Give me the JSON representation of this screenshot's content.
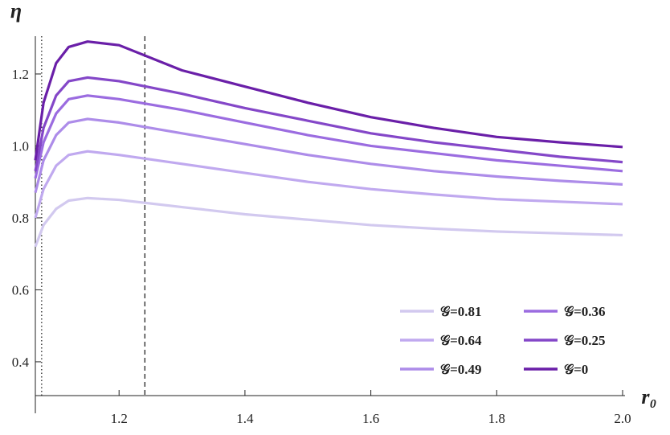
{
  "chart_data": {
    "type": "line",
    "x_label": "r₀",
    "y_label": "η",
    "x": [
      1.067,
      1.08,
      1.1,
      1.12,
      1.15,
      1.2,
      1.3,
      1.4,
      1.5,
      1.6,
      1.7,
      1.8,
      1.9,
      2.0
    ],
    "series": [
      {
        "name": "𝒢=0.81",
        "color": "#d2c9ef",
        "values": [
          0.72,
          0.78,
          0.825,
          0.848,
          0.855,
          0.85,
          0.83,
          0.81,
          0.795,
          0.78,
          0.77,
          0.762,
          0.757,
          0.752
        ]
      },
      {
        "name": "𝒢=0.64",
        "color": "#c0a9ef",
        "values": [
          0.8,
          0.88,
          0.945,
          0.975,
          0.985,
          0.975,
          0.95,
          0.925,
          0.9,
          0.88,
          0.865,
          0.852,
          0.845,
          0.838
        ]
      },
      {
        "name": "𝒢=0.49",
        "color": "#ad8ce9",
        "values": [
          0.87,
          0.96,
          1.03,
          1.065,
          1.075,
          1.065,
          1.035,
          1.005,
          0.975,
          0.95,
          0.93,
          0.915,
          0.903,
          0.893
        ]
      },
      {
        "name": "𝒢=0.36",
        "color": "#9b6ce0",
        "values": [
          0.91,
          1.01,
          1.09,
          1.13,
          1.14,
          1.13,
          1.1,
          1.065,
          1.03,
          1.0,
          0.98,
          0.96,
          0.945,
          0.93
        ]
      },
      {
        "name": "𝒢=0.25",
        "color": "#8447c8",
        "values": [
          0.93,
          1.05,
          1.14,
          1.18,
          1.19,
          1.18,
          1.145,
          1.105,
          1.07,
          1.035,
          1.01,
          0.99,
          0.97,
          0.955
        ]
      },
      {
        "name": "𝒢=0",
        "color": "#6a1fa8",
        "values": [
          0.96,
          1.12,
          1.23,
          1.275,
          1.29,
          1.28,
          1.21,
          1.165,
          1.12,
          1.08,
          1.05,
          1.025,
          1.01,
          0.997
        ]
      }
    ],
    "xlim": [
      1.067,
      2.0
    ],
    "ylim": [
      0.306,
      1.305
    ],
    "xticks": [
      1.2,
      1.4,
      1.6,
      1.8,
      {
        "value": 2,
        "label": "2.0"
      }
    ],
    "yticks": [
      0.4,
      0.6,
      0.8,
      {
        "value": 1,
        "label": "1.0"
      },
      1.2
    ],
    "vlines": [
      {
        "x": 1.077,
        "style": "dotted"
      },
      {
        "x": 1.241,
        "style": "dashed"
      }
    ],
    "legend": "lower right",
    "grid": false
  }
}
